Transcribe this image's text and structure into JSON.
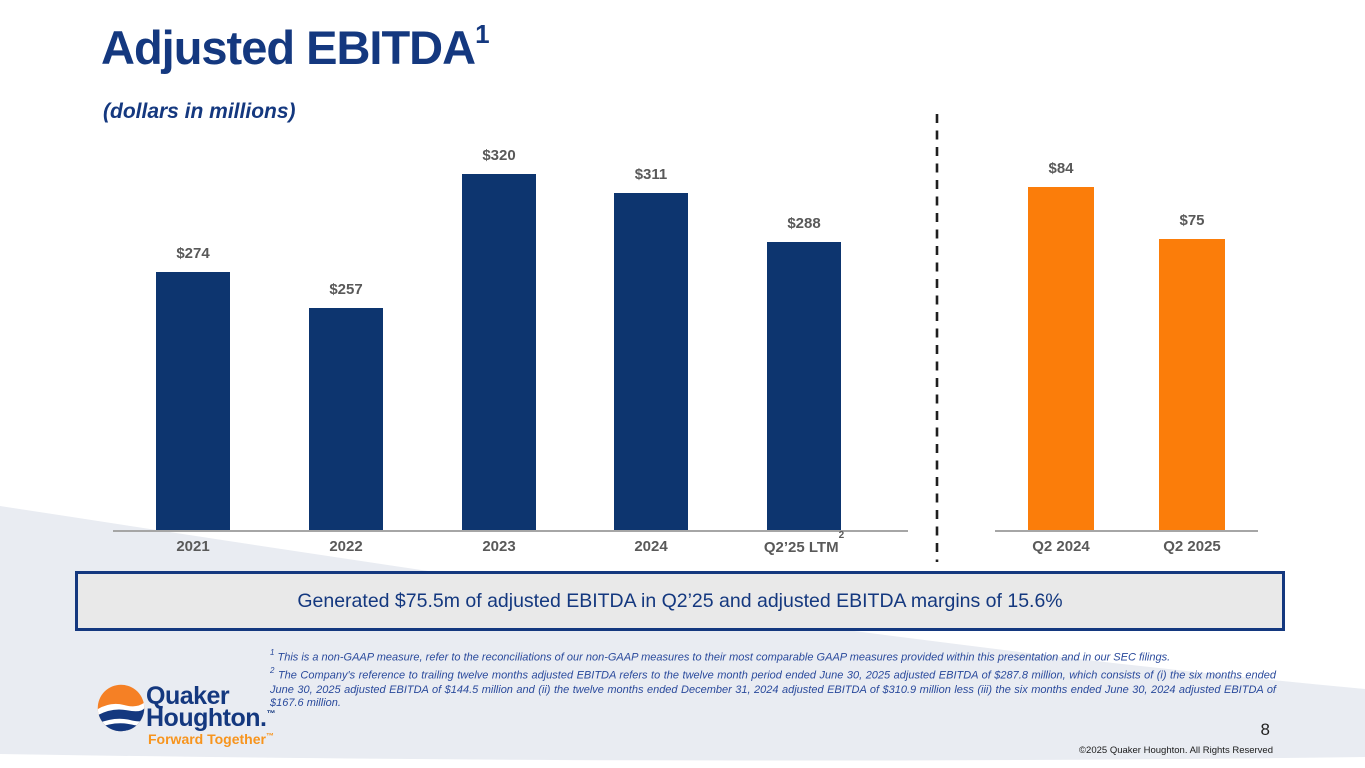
{
  "slide": {
    "title": "Adjusted EBITDA",
    "title_sup": "1",
    "subtitle": "(dollars in millions)",
    "callout": "Generated $75.5m of adjusted EBITDA in Q2’25 and adjusted EBITDA margins of 15.6%",
    "page_number": "8",
    "copyright": "©2025 Quaker Houghton. All Rights Reserved"
  },
  "logo": {
    "line1": "Quaker",
    "line2": "Houghton.",
    "line2_mark": "™",
    "tagline": "Forward Together",
    "tagline_mark": "™",
    "orange": "#f58025",
    "navy": "#14387f"
  },
  "footnotes": [
    {
      "marker": "1",
      "text": "This is a non-GAAP measure, refer to the reconciliations of our non-GAAP measures to their most comparable GAAP measures provided within this presentation and in our SEC filings."
    },
    {
      "marker": "2",
      "text": "The Company's reference to trailing twelve months adjusted EBITDA refers to the twelve month period ended June 30, 2025 adjusted EBITDA of $287.8 million, which consists of (i) the six months ended June 30, 2025 adjusted EBITDA of $144.5 million and (ii) the twelve months ended December 31, 2024 adjusted EBITDA of $310.9 million less (iii) the six months ended June 30, 2024 adjusted EBITDA of $167.6 million."
    }
  ],
  "chart_data": {
    "type": "bar",
    "title": "Adjusted EBITDA (dollars in millions)",
    "grid": false,
    "legend": false,
    "label_color": "#595959",
    "axis_color": "#a6a6a6",
    "divider_color": "#1f1f1f",
    "groups": [
      {
        "name": "annual-and-ltm",
        "bar_color": "#0d356f",
        "categories": [
          "2021",
          "2022",
          "2023",
          "2024",
          "Q2’25 LTM"
        ],
        "category_sups": [
          "",
          "",
          "",
          "",
          "2"
        ],
        "values": [
          274,
          257,
          320,
          311,
          288
        ],
        "value_labels": [
          "$274",
          "$257",
          "$320",
          "$311",
          "$288"
        ],
        "ylim": [
          152,
          340
        ]
      },
      {
        "name": "q2-comparison",
        "bar_color": "#fb7d0a",
        "categories": [
          "Q2 2024",
          "Q2 2025"
        ],
        "category_sups": [
          "",
          ""
        ],
        "values": [
          84,
          75
        ],
        "value_labels": [
          "$84",
          "$75"
        ],
        "ylim": [
          25,
          92
        ]
      }
    ]
  }
}
